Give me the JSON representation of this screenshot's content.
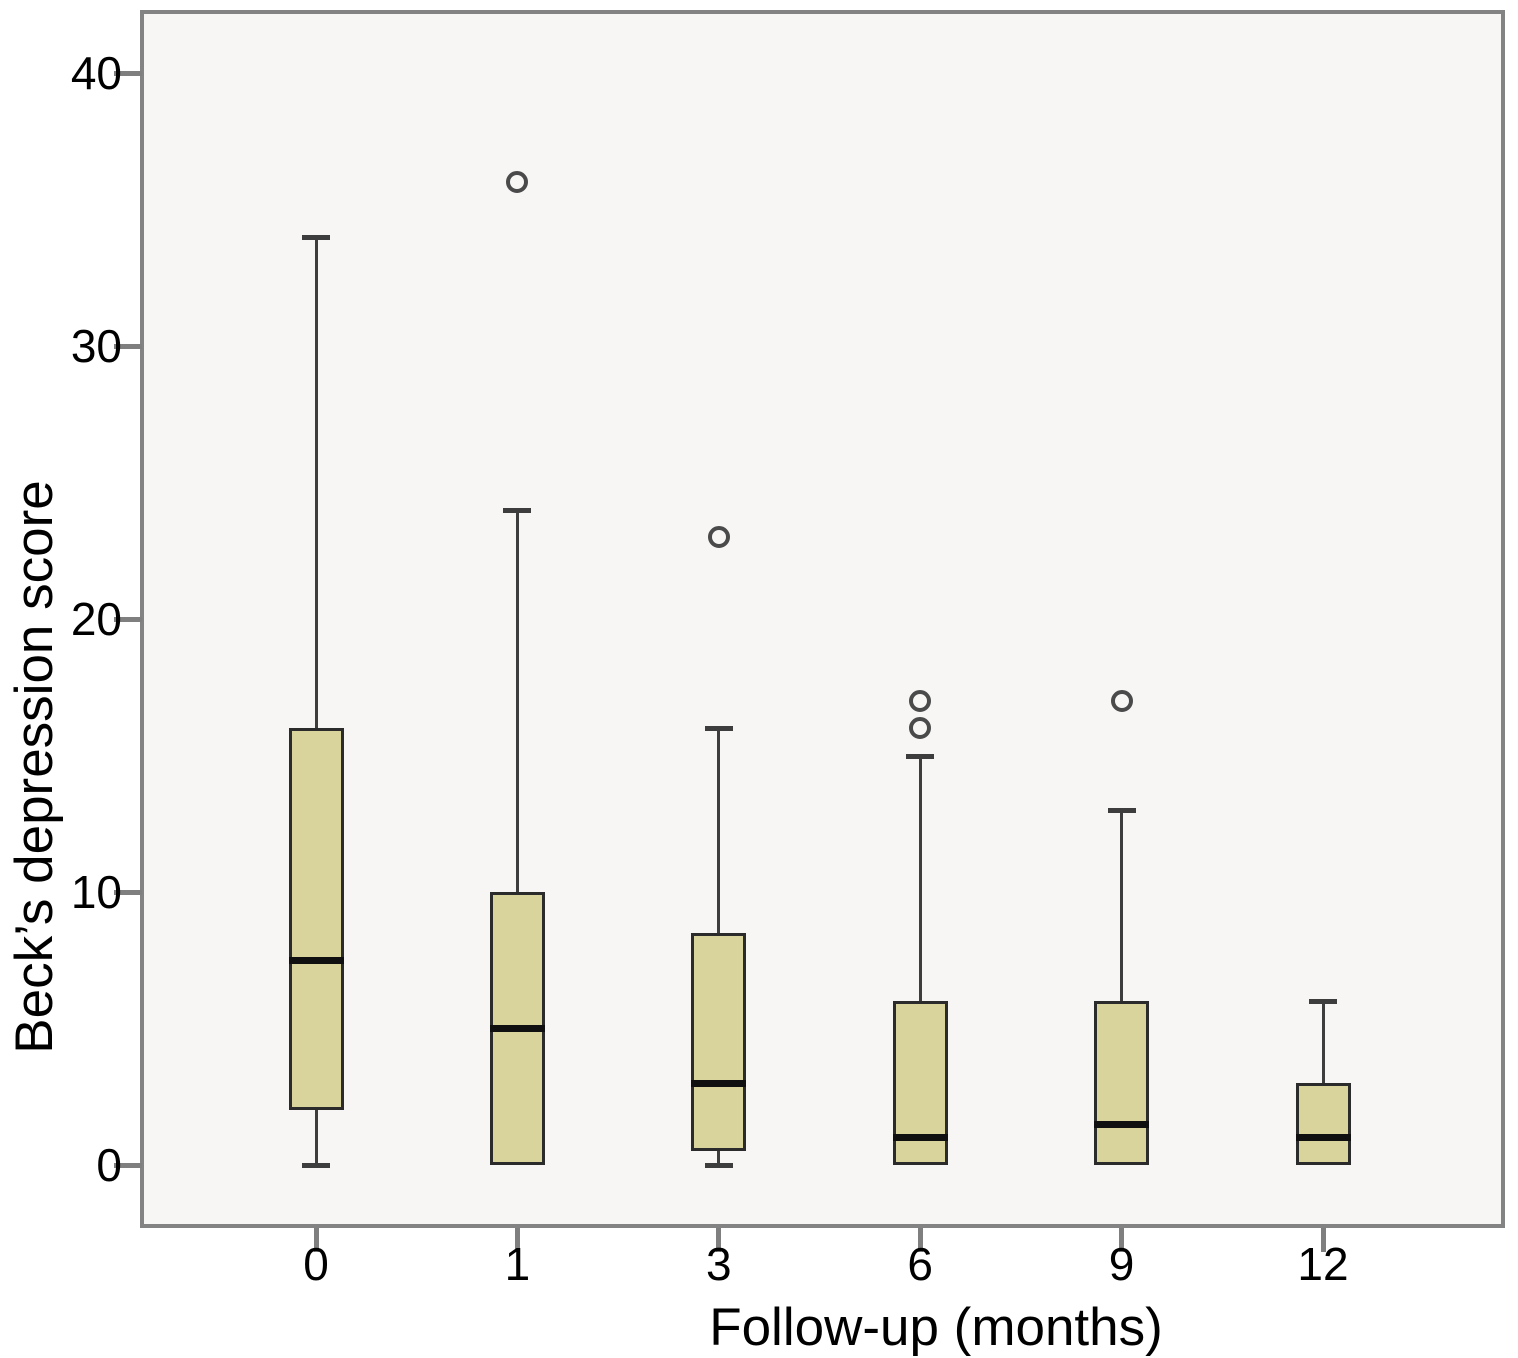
{
  "chart_data": {
    "type": "boxplot",
    "title": "",
    "xlabel": "Follow-up (months)",
    "ylabel": "Beck’s depression score",
    "categories": [
      "0",
      "1",
      "3",
      "6",
      "9",
      "12"
    ],
    "yticks": [
      0,
      10,
      20,
      30,
      40
    ],
    "ylim": [
      -2.3,
      42.3
    ],
    "grid": false,
    "legend": "none",
    "boxes": [
      {
        "category": "0",
        "min": 0,
        "q1": 2,
        "median": 7.5,
        "q3": 16,
        "whisker_high": 34,
        "outliers": []
      },
      {
        "category": "1",
        "min": 0,
        "q1": 0,
        "median": 5,
        "q3": 10,
        "whisker_high": 24,
        "outliers": [
          36
        ]
      },
      {
        "category": "3",
        "min": 0,
        "q1": 0.5,
        "median": 3,
        "q3": 8.5,
        "whisker_high": 16,
        "outliers": [
          23
        ]
      },
      {
        "category": "6",
        "min": 0,
        "q1": 0,
        "median": 1,
        "q3": 6,
        "whisker_high": 15,
        "outliers": [
          16,
          17
        ]
      },
      {
        "category": "9",
        "min": 0,
        "q1": 0,
        "median": 1.5,
        "q3": 6,
        "whisker_high": 13,
        "outliers": [
          17
        ]
      },
      {
        "category": "12",
        "min": 0,
        "q1": 0,
        "median": 1,
        "q3": 3,
        "whisker_high": 6,
        "outliers": []
      }
    ],
    "colors": {
      "box_fill": "#d9d49b",
      "box_border": "#2b2b2b",
      "median": "#101010",
      "whisker": "#3d3d3d",
      "outlier": "#4a4a4a",
      "plot_background": "#f7f6f5",
      "frame": "#838383",
      "text": "#000000"
    }
  }
}
